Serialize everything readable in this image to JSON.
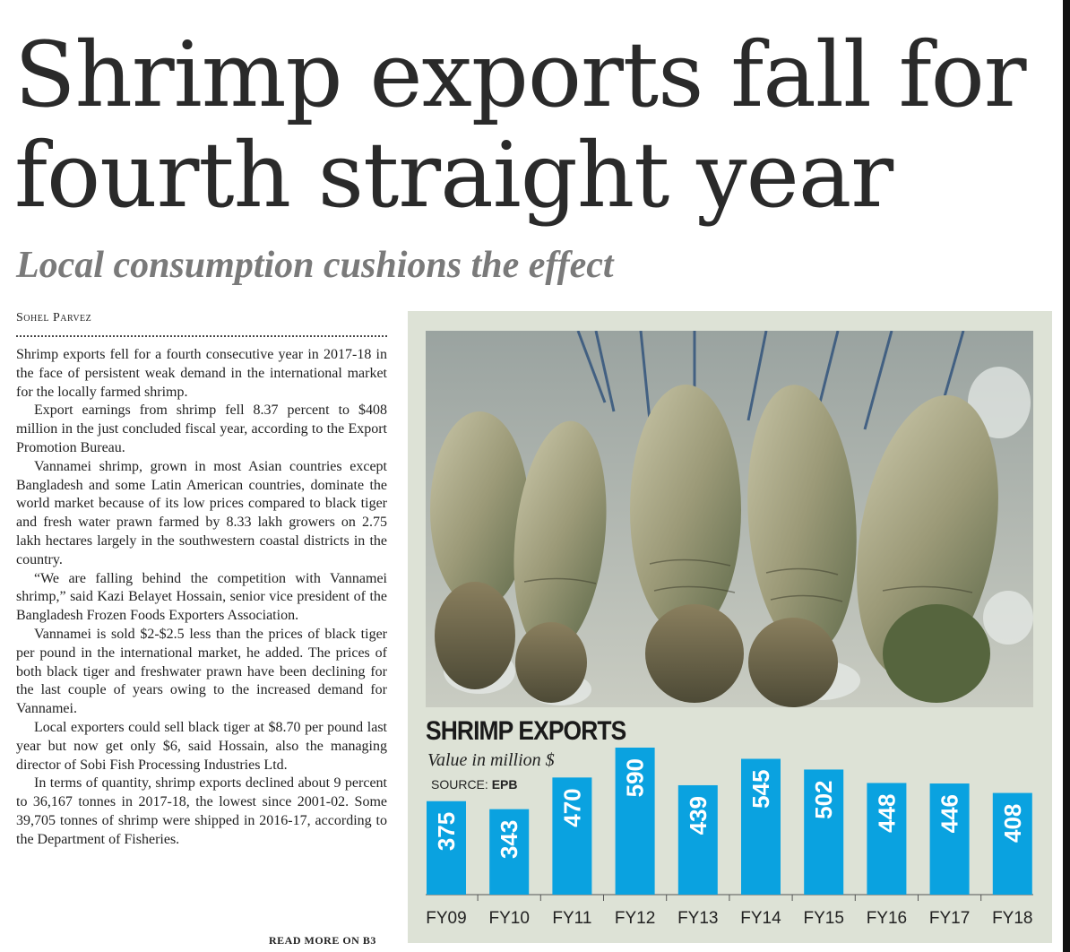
{
  "headline": "Shrimp exports fall for fourth straight year",
  "subheadline": "Local consumption cushions the effect",
  "byline": "Sohel Parvez",
  "article": {
    "paragraphs": [
      "Shrimp exports fell for a fourth consecutive year in 2017-18 in the face of persistent weak demand in the international market for the locally farmed shrimp.",
      "Export earnings from shrimp fell 8.37 percent to $408 million in the just concluded fiscal year, according to the Export Promotion Bureau.",
      "Vannamei shrimp, grown in most Asian countries except Bangladesh and some Latin American countries, dominate the world market because of its low prices compared to black tiger and fresh water prawn farmed by 8.33 lakh growers on 2.75 lakh hectares largely in the southwestern coastal districts in the country.",
      "“We are falling behind the competition with Vannamei shrimp,” said Kazi Belayet Hossain, senior vice president of the Bangladesh Frozen Foods Exporters Association.",
      "Vannamei is sold $2-$2.5 less than the prices of black tiger per pound in the international market, he added. The prices of both black tiger and freshwater prawn have been declining for the last couple of years owing to the increased demand for Vannamei.",
      "Local exporters could sell black tiger at $8.70 per pound last year but now get only $6, said Hossain, also the managing director of Sobi Fish Processing Industries Ltd.",
      "In terms of quantity, shrimp exports declined about 9 percent to 36,167 tonnes in 2017-18, the lowest since 2001-02. Some 39,705 tonnes of shrimp were shipped in 2016-17, according to the Department of Fisheries."
    ],
    "read_more": "READ MORE ON B3"
  },
  "colors": {
    "bar": "#0aa2e0",
    "panel_bg": "#dde2d6",
    "bar_label": "#ffffff"
  },
  "chart_data": {
    "type": "bar",
    "title": "SHRIMP EXPORTS",
    "subtitle": "Value in million $",
    "source_label": "SOURCE: ",
    "source": "EPB",
    "categories": [
      "FY09",
      "FY10",
      "FY11",
      "FY12",
      "FY13",
      "FY14",
      "FY15",
      "FY16",
      "FY17",
      "FY18"
    ],
    "values": [
      375,
      343,
      470,
      590,
      439,
      545,
      502,
      448,
      446,
      408
    ],
    "ylim": [
      0,
      590
    ],
    "grid": false,
    "legend": "none"
  }
}
